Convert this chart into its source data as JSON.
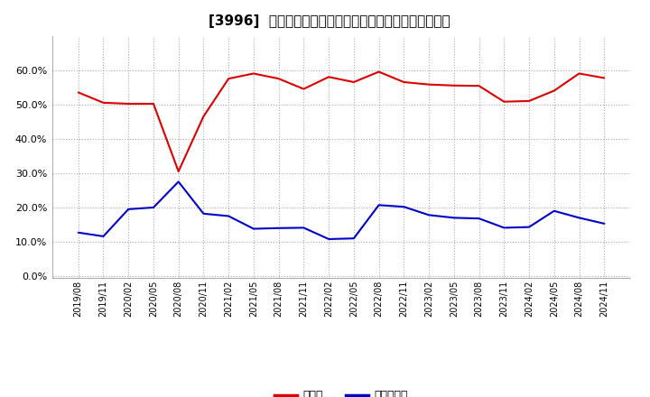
{
  "title": "[3996]  現頲金、有利子負債の総資産に対する比率の推移",
  "x_labels": [
    "2019/08",
    "2019/11",
    "2020/02",
    "2020/05",
    "2020/08",
    "2020/11",
    "2021/02",
    "2021/05",
    "2021/08",
    "2021/11",
    "2022/02",
    "2022/05",
    "2022/08",
    "2022/11",
    "2023/02",
    "2023/05",
    "2023/08",
    "2023/11",
    "2024/02",
    "2024/05",
    "2024/08",
    "2024/11"
  ],
  "cash": [
    0.535,
    0.505,
    0.502,
    0.502,
    0.305,
    0.465,
    0.575,
    0.59,
    0.575,
    0.545,
    0.58,
    0.565,
    0.595,
    0.565,
    0.558,
    0.555,
    0.554,
    0.508,
    0.51,
    0.54,
    0.59,
    0.577
  ],
  "debt": [
    0.127,
    0.116,
    0.195,
    0.2,
    0.275,
    0.182,
    0.175,
    0.138,
    0.14,
    0.141,
    0.108,
    0.11,
    0.207,
    0.202,
    0.178,
    0.17,
    0.168,
    0.141,
    0.143,
    0.19,
    0.17,
    0.153
  ],
  "cash_color": "#dd0000",
  "debt_color": "#0000cc",
  "background_color": "#ffffff",
  "plot_bg_color": "#ffffff",
  "grid_color": "#aaaaaa",
  "legend_cash": "現頲金",
  "legend_debt": "有利子負債",
  "yticks": [
    0.0,
    0.1,
    0.2,
    0.3,
    0.4,
    0.5,
    0.6
  ],
  "ylim": [
    -0.005,
    0.7
  ]
}
